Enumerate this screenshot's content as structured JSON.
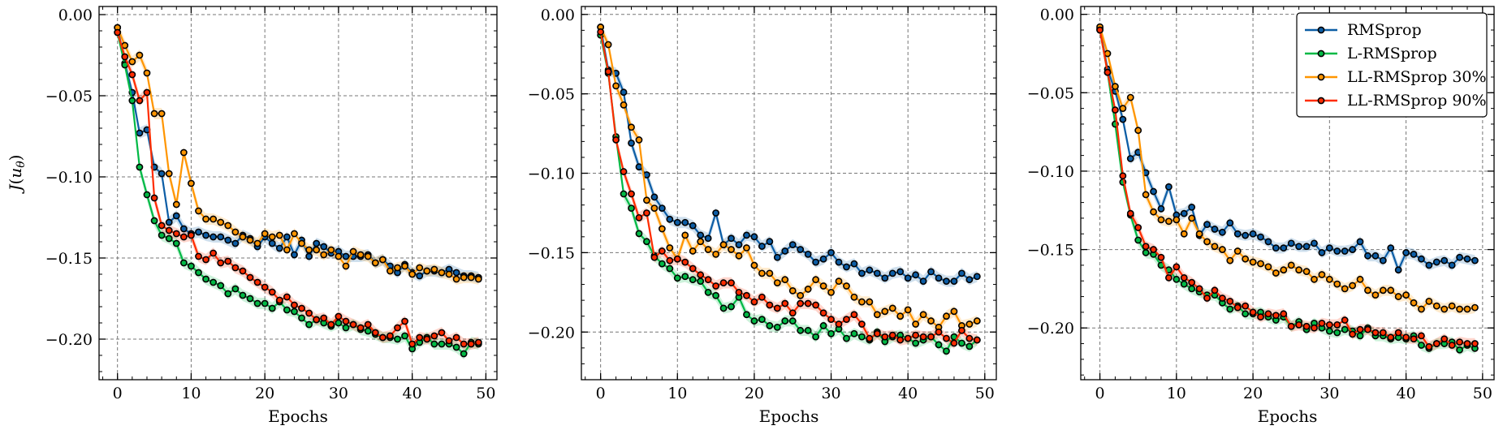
{
  "figure": {
    "legend": [
      "RMSprop",
      "L-RMSprop",
      "LL-RMSprop 30%",
      "LL-RMSprop 90%"
    ],
    "colors": {
      "RMSprop": "#0C5DA5",
      "L-RMSprop": "#00B945",
      "LL-RMSprop 30%": "#FF9500",
      "LL-RMSprop 90%": "#FF2C00"
    },
    "grid": true,
    "legend_position": "top-right of third panel"
  },
  "chart_data": [
    {
      "type": "line",
      "xlabel": "Epochs",
      "ylabel": "J(u_θ)",
      "xlim": [
        -2.5,
        51.5
      ],
      "ylim": [
        -0.225,
        0.005
      ],
      "xticks": [
        0,
        10,
        20,
        30,
        40,
        50
      ],
      "xtick_labels": [
        "0",
        "10",
        "20",
        "30",
        "40",
        "50"
      ],
      "yticks": [
        0,
        -0.05,
        -0.1,
        -0.15,
        -0.2
      ],
      "ytick_labels": [
        "0.00",
        "−0.05",
        "−0.10",
        "−0.15",
        "−0.20"
      ],
      "x": [
        0,
        1,
        2,
        3,
        4,
        5,
        6,
        7,
        8,
        9,
        10,
        11,
        12,
        13,
        14,
        15,
        16,
        17,
        18,
        19,
        20,
        21,
        22,
        23,
        24,
        25,
        26,
        27,
        28,
        29,
        30,
        31,
        32,
        33,
        34,
        35,
        36,
        37,
        38,
        39,
        40,
        41,
        42,
        43,
        44,
        45,
        46,
        47,
        48,
        49
      ],
      "series": [
        {
          "name": "RMSprop",
          "values": [
            -0.008,
            -0.03,
            -0.048,
            -0.073,
            -0.071,
            -0.094,
            -0.098,
            -0.128,
            -0.124,
            -0.132,
            -0.135,
            -0.134,
            -0.136,
            -0.137,
            -0.137,
            -0.139,
            -0.141,
            -0.136,
            -0.138,
            -0.143,
            -0.137,
            -0.141,
            -0.144,
            -0.137,
            -0.148,
            -0.139,
            -0.149,
            -0.141,
            -0.143,
            -0.147,
            -0.146,
            -0.149,
            -0.149,
            -0.149,
            -0.148,
            -0.153,
            -0.151,
            -0.155,
            -0.159,
            -0.154,
            -0.159,
            -0.161,
            -0.158,
            -0.158,
            -0.159,
            -0.157,
            -0.159,
            -0.161,
            -0.161,
            -0.162
          ]
        },
        {
          "name": "L-RMSprop",
          "values": [
            -0.011,
            -0.031,
            -0.053,
            -0.094,
            -0.111,
            -0.127,
            -0.136,
            -0.138,
            -0.141,
            -0.153,
            -0.155,
            -0.159,
            -0.163,
            -0.165,
            -0.167,
            -0.172,
            -0.169,
            -0.173,
            -0.175,
            -0.178,
            -0.178,
            -0.181,
            -0.177,
            -0.182,
            -0.183,
            -0.187,
            -0.191,
            -0.188,
            -0.19,
            -0.192,
            -0.19,
            -0.193,
            -0.191,
            -0.194,
            -0.195,
            -0.197,
            -0.199,
            -0.199,
            -0.2,
            -0.198,
            -0.206,
            -0.202,
            -0.199,
            -0.203,
            -0.203,
            -0.203,
            -0.205,
            -0.209,
            -0.202,
            -0.203
          ]
        },
        {
          "name": "LL-RMSprop 30%",
          "values": [
            -0.008,
            -0.019,
            -0.029,
            -0.025,
            -0.036,
            -0.061,
            -0.061,
            -0.098,
            -0.117,
            -0.085,
            -0.104,
            -0.121,
            -0.126,
            -0.126,
            -0.128,
            -0.13,
            -0.134,
            -0.137,
            -0.139,
            -0.141,
            -0.135,
            -0.137,
            -0.136,
            -0.145,
            -0.135,
            -0.141,
            -0.145,
            -0.145,
            -0.148,
            -0.145,
            -0.149,
            -0.155,
            -0.146,
            -0.148,
            -0.149,
            -0.153,
            -0.151,
            -0.158,
            -0.156,
            -0.155,
            -0.16,
            -0.156,
            -0.158,
            -0.157,
            -0.159,
            -0.16,
            -0.163,
            -0.162,
            -0.162,
            -0.163
          ]
        },
        {
          "name": "LL-RMSprop 90%",
          "values": [
            -0.011,
            -0.026,
            -0.037,
            -0.053,
            -0.048,
            -0.113,
            -0.13,
            -0.133,
            -0.135,
            -0.137,
            -0.136,
            -0.149,
            -0.151,
            -0.147,
            -0.153,
            -0.152,
            -0.156,
            -0.158,
            -0.162,
            -0.165,
            -0.168,
            -0.171,
            -0.176,
            -0.174,
            -0.179,
            -0.181,
            -0.184,
            -0.188,
            -0.187,
            -0.191,
            -0.186,
            -0.189,
            -0.191,
            -0.193,
            -0.191,
            -0.196,
            -0.199,
            -0.198,
            -0.193,
            -0.189,
            -0.203,
            -0.199,
            -0.2,
            -0.198,
            -0.196,
            -0.201,
            -0.199,
            -0.203,
            -0.203,
            -0.202
          ]
        }
      ]
    },
    {
      "type": "line",
      "xlabel": "Epochs",
      "ylabel": "",
      "xlim": [
        -2.5,
        51.5
      ],
      "ylim": [
        -0.23,
        0.005
      ],
      "xticks": [
        0,
        10,
        20,
        30,
        40,
        50
      ],
      "xtick_labels": [
        "0",
        "10",
        "20",
        "30",
        "40",
        "50"
      ],
      "yticks": [
        0,
        -0.05,
        -0.1,
        -0.15,
        -0.2
      ],
      "ytick_labels": [
        "0.00",
        "−0.05",
        "−0.10",
        "−0.15",
        "−0.20"
      ],
      "x": [
        0,
        1,
        2,
        3,
        4,
        5,
        6,
        7,
        8,
        9,
        10,
        11,
        12,
        13,
        14,
        15,
        16,
        17,
        18,
        19,
        20,
        21,
        22,
        23,
        24,
        25,
        26,
        27,
        28,
        29,
        30,
        31,
        32,
        33,
        34,
        35,
        36,
        37,
        38,
        39,
        40,
        41,
        42,
        43,
        44,
        45,
        46,
        47,
        48,
        49
      ],
      "series": [
        {
          "name": "RMSprop",
          "values": [
            -0.008,
            -0.035,
            -0.037,
            -0.049,
            -0.081,
            -0.096,
            -0.101,
            -0.115,
            -0.122,
            -0.129,
            -0.131,
            -0.131,
            -0.133,
            -0.139,
            -0.141,
            -0.125,
            -0.145,
            -0.141,
            -0.145,
            -0.139,
            -0.14,
            -0.146,
            -0.143,
            -0.153,
            -0.149,
            -0.145,
            -0.148,
            -0.151,
            -0.156,
            -0.154,
            -0.15,
            -0.156,
            -0.159,
            -0.157,
            -0.163,
            -0.161,
            -0.163,
            -0.166,
            -0.163,
            -0.162,
            -0.166,
            -0.164,
            -0.168,
            -0.162,
            -0.166,
            -0.168,
            -0.168,
            -0.163,
            -0.167,
            -0.165
          ]
        },
        {
          "name": "L-RMSprop",
          "values": [
            -0.013,
            -0.037,
            -0.077,
            -0.113,
            -0.122,
            -0.138,
            -0.143,
            -0.152,
            -0.157,
            -0.16,
            -0.166,
            -0.165,
            -0.167,
            -0.168,
            -0.175,
            -0.177,
            -0.185,
            -0.184,
            -0.178,
            -0.189,
            -0.193,
            -0.192,
            -0.196,
            -0.197,
            -0.193,
            -0.193,
            -0.199,
            -0.199,
            -0.203,
            -0.196,
            -0.201,
            -0.198,
            -0.204,
            -0.201,
            -0.203,
            -0.205,
            -0.2,
            -0.206,
            -0.203,
            -0.202,
            -0.204,
            -0.207,
            -0.205,
            -0.203,
            -0.208,
            -0.212,
            -0.203,
            -0.207,
            -0.209,
            -0.205
          ]
        },
        {
          "name": "LL-RMSprop 30%",
          "values": [
            -0.008,
            -0.019,
            -0.045,
            -0.057,
            -0.071,
            -0.079,
            -0.117,
            -0.122,
            -0.135,
            -0.147,
            -0.154,
            -0.139,
            -0.149,
            -0.143,
            -0.148,
            -0.151,
            -0.145,
            -0.148,
            -0.152,
            -0.147,
            -0.158,
            -0.163,
            -0.163,
            -0.169,
            -0.167,
            -0.174,
            -0.177,
            -0.173,
            -0.167,
            -0.171,
            -0.175,
            -0.168,
            -0.171,
            -0.178,
            -0.181,
            -0.181,
            -0.189,
            -0.187,
            -0.185,
            -0.19,
            -0.186,
            -0.195,
            -0.189,
            -0.193,
            -0.197,
            -0.19,
            -0.187,
            -0.196,
            -0.195,
            -0.193
          ]
        },
        {
          "name": "LL-RMSprop 90%",
          "values": [
            -0.011,
            -0.036,
            -0.079,
            -0.099,
            -0.113,
            -0.128,
            -0.125,
            -0.153,
            -0.149,
            -0.155,
            -0.154,
            -0.156,
            -0.16,
            -0.164,
            -0.167,
            -0.171,
            -0.169,
            -0.169,
            -0.175,
            -0.177,
            -0.181,
            -0.178,
            -0.183,
            -0.185,
            -0.182,
            -0.188,
            -0.182,
            -0.182,
            -0.183,
            -0.188,
            -0.192,
            -0.195,
            -0.192,
            -0.189,
            -0.195,
            -0.204,
            -0.201,
            -0.203,
            -0.202,
            -0.205,
            -0.204,
            -0.202,
            -0.203,
            -0.203,
            -0.2,
            -0.204,
            -0.207,
            -0.199,
            -0.204,
            -0.205
          ]
        }
      ]
    },
    {
      "type": "line",
      "xlabel": "Epochs",
      "ylabel": "",
      "xlim": [
        -2.5,
        51.5
      ],
      "ylim": [
        -0.233,
        0.005
      ],
      "xticks": [
        0,
        10,
        20,
        30,
        40,
        50
      ],
      "xtick_labels": [
        "0",
        "10",
        "20",
        "30",
        "40",
        "50"
      ],
      "yticks": [
        0,
        -0.05,
        -0.1,
        -0.15,
        -0.2
      ],
      "ytick_labels": [
        "0.00",
        "−0.05",
        "−0.10",
        "−0.15",
        "−0.20"
      ],
      "x": [
        0,
        1,
        2,
        3,
        4,
        5,
        6,
        7,
        8,
        9,
        10,
        11,
        12,
        13,
        14,
        15,
        16,
        17,
        18,
        19,
        20,
        21,
        22,
        23,
        24,
        25,
        26,
        27,
        28,
        29,
        30,
        31,
        32,
        33,
        34,
        35,
        36,
        37,
        38,
        39,
        40,
        41,
        42,
        43,
        44,
        45,
        46,
        47,
        48,
        49
      ],
      "series": [
        {
          "name": "RMSprop",
          "values": [
            -0.009,
            -0.035,
            -0.049,
            -0.067,
            -0.092,
            -0.088,
            -0.101,
            -0.113,
            -0.124,
            -0.11,
            -0.128,
            -0.127,
            -0.123,
            -0.141,
            -0.134,
            -0.137,
            -0.139,
            -0.133,
            -0.14,
            -0.141,
            -0.14,
            -0.142,
            -0.145,
            -0.149,
            -0.149,
            -0.146,
            -0.148,
            -0.148,
            -0.146,
            -0.152,
            -0.149,
            -0.151,
            -0.151,
            -0.15,
            -0.145,
            -0.154,
            -0.154,
            -0.157,
            -0.149,
            -0.163,
            -0.152,
            -0.153,
            -0.156,
            -0.16,
            -0.158,
            -0.157,
            -0.16,
            -0.155,
            -0.156,
            -0.157
          ]
        },
        {
          "name": "L-RMSprop",
          "values": [
            -0.01,
            -0.037,
            -0.07,
            -0.107,
            -0.128,
            -0.144,
            -0.152,
            -0.153,
            -0.16,
            -0.163,
            -0.169,
            -0.172,
            -0.175,
            -0.177,
            -0.179,
            -0.179,
            -0.184,
            -0.188,
            -0.186,
            -0.191,
            -0.191,
            -0.19,
            -0.193,
            -0.195,
            -0.193,
            -0.199,
            -0.196,
            -0.201,
            -0.197,
            -0.2,
            -0.202,
            -0.203,
            -0.201,
            -0.202,
            -0.205,
            -0.2,
            -0.205,
            -0.205,
            -0.207,
            -0.206,
            -0.207,
            -0.205,
            -0.211,
            -0.213,
            -0.21,
            -0.21,
            -0.209,
            -0.214,
            -0.211,
            -0.213
          ]
        },
        {
          "name": "LL-RMSprop 30%",
          "values": [
            -0.008,
            -0.025,
            -0.046,
            -0.06,
            -0.053,
            -0.074,
            -0.115,
            -0.126,
            -0.131,
            -0.132,
            -0.131,
            -0.14,
            -0.13,
            -0.14,
            -0.145,
            -0.148,
            -0.15,
            -0.157,
            -0.151,
            -0.156,
            -0.158,
            -0.159,
            -0.161,
            -0.165,
            -0.163,
            -0.16,
            -0.163,
            -0.164,
            -0.169,
            -0.166,
            -0.169,
            -0.172,
            -0.175,
            -0.173,
            -0.169,
            -0.176,
            -0.179,
            -0.176,
            -0.176,
            -0.18,
            -0.179,
            -0.184,
            -0.188,
            -0.183,
            -0.186,
            -0.188,
            -0.186,
            -0.188,
            -0.188,
            -0.187
          ]
        },
        {
          "name": "LL-RMSprop 90%",
          "values": [
            -0.01,
            -0.037,
            -0.061,
            -0.103,
            -0.127,
            -0.136,
            -0.148,
            -0.15,
            -0.155,
            -0.168,
            -0.161,
            -0.168,
            -0.171,
            -0.175,
            -0.181,
            -0.176,
            -0.181,
            -0.183,
            -0.187,
            -0.186,
            -0.19,
            -0.193,
            -0.191,
            -0.192,
            -0.191,
            -0.199,
            -0.198,
            -0.199,
            -0.2,
            -0.197,
            -0.198,
            -0.198,
            -0.195,
            -0.204,
            -0.201,
            -0.201,
            -0.203,
            -0.203,
            -0.206,
            -0.203,
            -0.206,
            -0.207,
            -0.205,
            -0.212,
            -0.21,
            -0.207,
            -0.211,
            -0.209,
            -0.21,
            -0.21
          ]
        }
      ]
    }
  ]
}
